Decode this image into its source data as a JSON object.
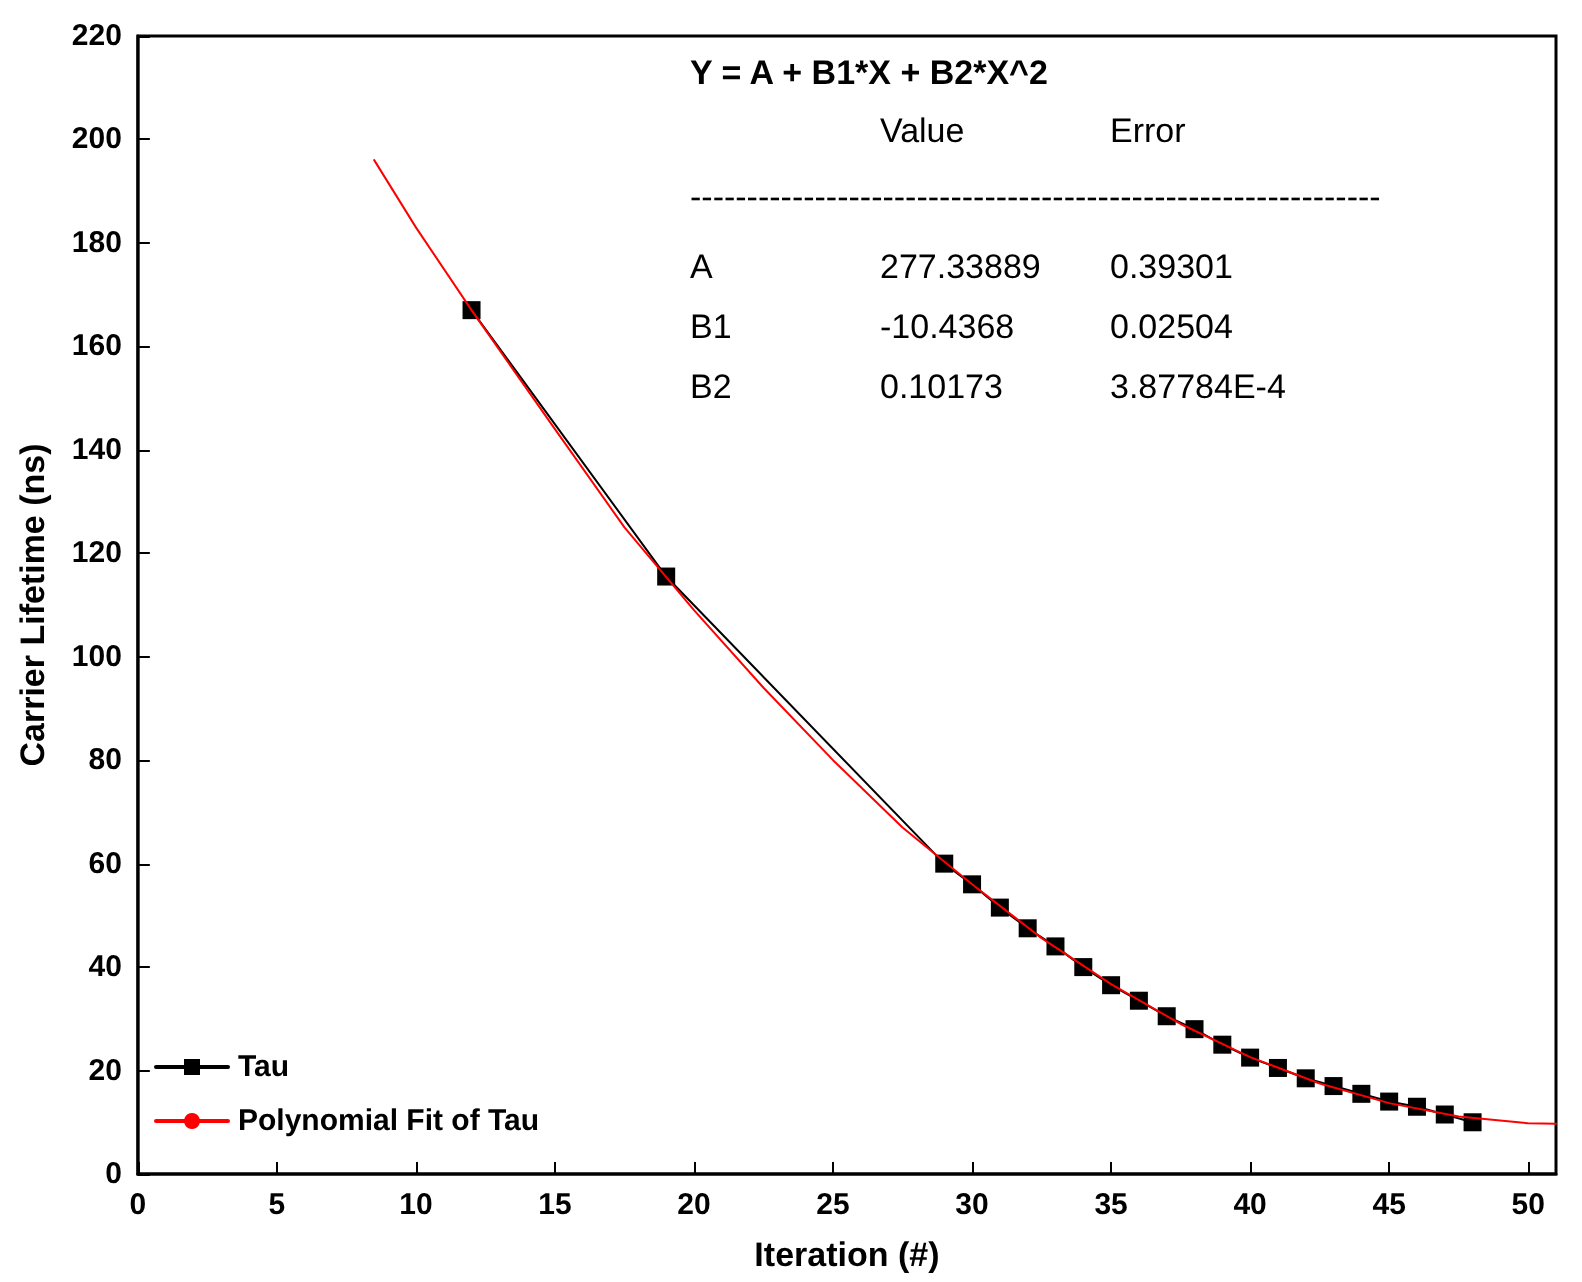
{
  "chart_data": {
    "type": "line",
    "xlabel": "Iteration (#)",
    "ylabel": "Carrier Lifetime (ns)",
    "xlim": [
      0,
      51
    ],
    "xticks": [
      0,
      5,
      10,
      15,
      20,
      25,
      30,
      35,
      40,
      45,
      50
    ],
    "ylim": [
      0,
      220
    ],
    "yticks": [
      0,
      20,
      40,
      60,
      80,
      100,
      120,
      140,
      160,
      180,
      200,
      220
    ],
    "grid": false,
    "legend": "bottom left",
    "marker": "square",
    "line_style": "solid",
    "series": [
      {
        "name": "Tau",
        "color": "#000000",
        "x": [
          12,
          19,
          29,
          30,
          31,
          32,
          33,
          34,
          35,
          36,
          37,
          38,
          39,
          40,
          41,
          42,
          43,
          44,
          45,
          46,
          47,
          48
        ],
        "values": [
          167,
          115.5,
          60,
          56,
          51.5,
          47.5,
          44,
          40,
          36.5,
          33.5,
          30.5,
          28,
          25,
          22.5,
          20.5,
          18.5,
          17,
          15.5,
          14,
          13,
          11.5,
          10
        ]
      },
      {
        "name": "Polynomial Fit of Tau",
        "color": "#ff0000",
        "marker": "none",
        "x": [
          8.5,
          10,
          12,
          15,
          17.5,
          20,
          22.5,
          25,
          27.5,
          30,
          32.5,
          35,
          37.5,
          40,
          42.5,
          45,
          47.5,
          50,
          51
        ],
        "values": [
          196,
          183,
          167,
          144,
          125,
          109,
          94,
          80,
          67,
          56,
          45.6,
          36.7,
          29,
          22.6,
          17.5,
          13.7,
          11.1,
          9.8,
          9.7
        ]
      }
    ],
    "annotations": [
      "Y = A + B1*X + B2*X^2",
      "Value",
      "Error",
      "-------------------------------------------------------------",
      "A",
      "277.33889",
      "0.39301",
      "B1",
      "-10.4368",
      "0.02504",
      "B2",
      "0.10173",
      "3.87784E-4"
    ]
  }
}
